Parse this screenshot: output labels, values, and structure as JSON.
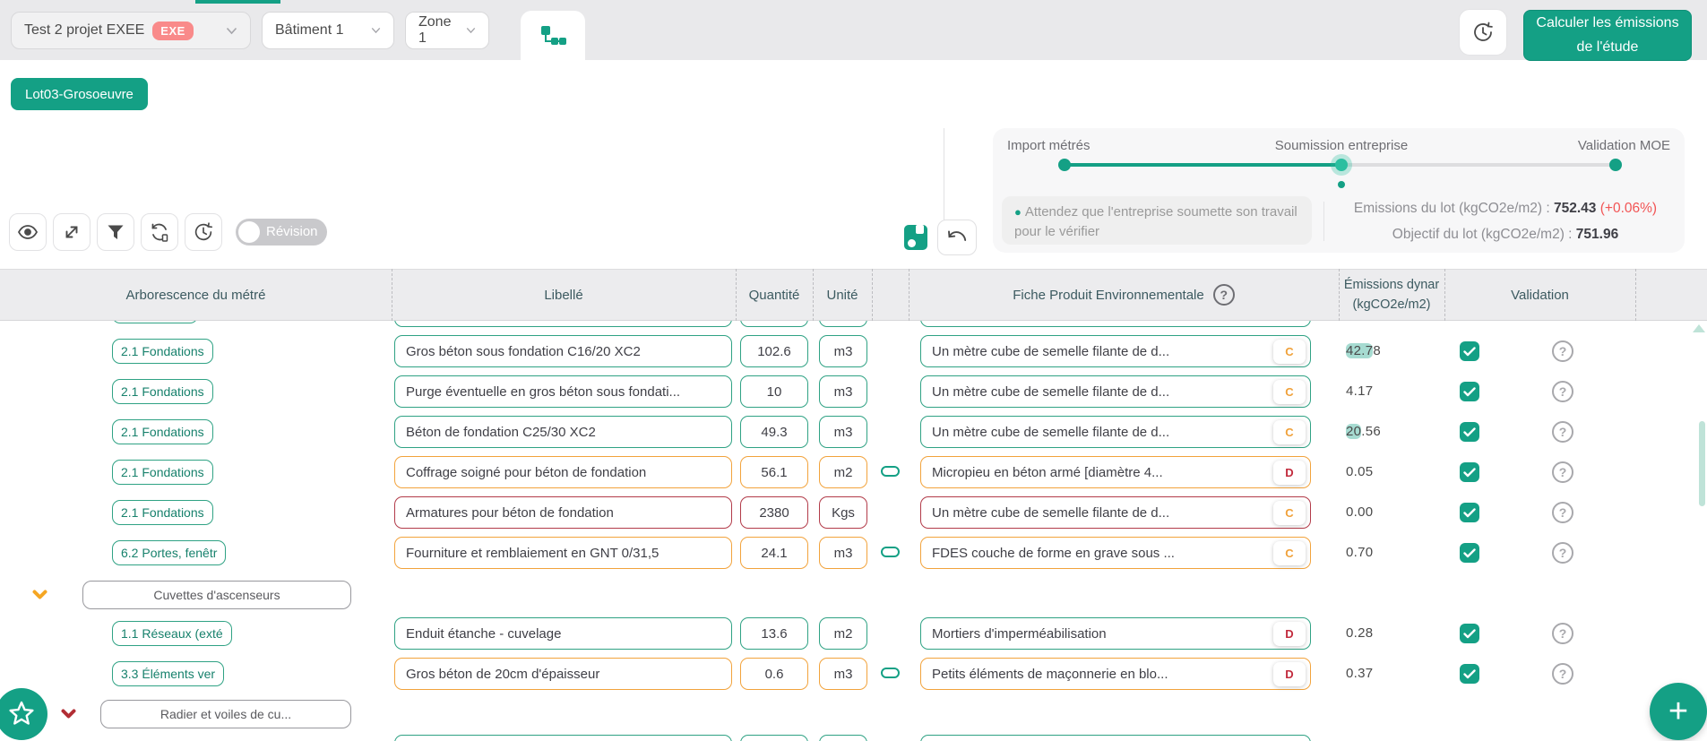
{
  "colors": {
    "accent": "#14A085",
    "row_teal": "#2FA284",
    "row_orange": "#F2A33C",
    "row_red": "#B23B49",
    "grade_c": "#F0A13A",
    "grade_d": "#C22B3D",
    "exe_badge": "#F98A8A",
    "delta_red": "#F25555"
  },
  "icons": {
    "tab": "sitemap-icon",
    "history": "history-clock-icon",
    "eye": "eye-icon",
    "expand": "expand-icon",
    "filter": "filter-icon",
    "sync": "sync-icon",
    "clock": "clock-icon",
    "save": "save-icon",
    "undo": "undo-icon",
    "help": "question-circle-icon",
    "check": "check-icon",
    "link": "link-pill-icon",
    "star": "star-icon",
    "plus": "plus-icon",
    "chevron": "chevron-down-icon"
  },
  "topbar": {
    "project": {
      "label": "Test 2 projet EXEE",
      "badge": "EXE"
    },
    "building": "Bâtiment 1",
    "zone": "Zone 1",
    "calc_button": "Calculer les émissions de l'étude"
  },
  "lot_badge": "Lot03-Grosoeuvre",
  "workflow": {
    "steps": [
      "Import métrés",
      "Soumission entreprise",
      "Validation MOE"
    ],
    "note": "Attendez que l'entreprise soumette son travail pour le vérifier",
    "emissions_label": "Emissions du lot (kgCO2e/m2) :",
    "emissions_value": "752.43",
    "emissions_delta": "(+0.06%)",
    "target_label": "Objectif du lot (kgCO2e/m2) :",
    "target_value": "751.96"
  },
  "toolbar": {
    "revision_label": "Révision"
  },
  "table": {
    "headers": {
      "tree": "Arborescence du métré",
      "label": "Libellé",
      "quantity": "Quantité",
      "unit": "Unité",
      "fdes": "Fiche Produit Environnementale",
      "help_glyph": "?",
      "emissions_line1": "Émissions dynar",
      "emissions_line2": "(kgCO2e/m2)",
      "validation": "Validation"
    },
    "rows": [
      {
        "kind": "partial-bottom",
        "tone": "teal"
      },
      {
        "kind": "item",
        "tone": "teal",
        "tree_label": "2.1 Fondations",
        "label": "Gros béton sous fondation C16/20 XC2",
        "qty": "102.6",
        "unit": "m3",
        "linked": false,
        "fdes": "Un mètre cube de semelle filante de d...",
        "grade": "C",
        "emission": "42.78",
        "em_hl": "42.7",
        "validated": true
      },
      {
        "kind": "item",
        "tone": "teal",
        "tree_label": "2.1 Fondations",
        "label": "Purge éventuelle en gros béton sous fondati...",
        "qty": "10",
        "unit": "m3",
        "linked": false,
        "fdes": "Un mètre cube de semelle filante de d...",
        "grade": "C",
        "emission": "4.17",
        "validated": true
      },
      {
        "kind": "item",
        "tone": "teal",
        "tree_label": "2.1 Fondations",
        "label": "Béton de fondation C25/30 XC2",
        "qty": "49.3",
        "unit": "m3",
        "linked": false,
        "fdes": "Un mètre cube de semelle filante de d...",
        "grade": "C",
        "emission": "20.56",
        "em_hl": "20",
        "validated": true
      },
      {
        "kind": "item",
        "tone": "orange",
        "tree_label": "2.1 Fondations",
        "label": "Coffrage soigné pour béton de fondation",
        "qty": "56.1",
        "unit": "m2",
        "linked": true,
        "fdes": "Micropieu en béton armé [diamètre 4...",
        "grade": "D",
        "emission": "0.05",
        "validated": true
      },
      {
        "kind": "item",
        "tone": "red",
        "tree_label": "2.1 Fondations",
        "label": "Armatures pour béton de fondation",
        "qty": "2380",
        "unit": "Kgs",
        "linked": false,
        "fdes": "Un mètre cube de semelle filante de d...",
        "grade": "C",
        "emission": "0.00",
        "validated": true
      },
      {
        "kind": "item",
        "tone": "orange",
        "tree_label": "6.2 Portes, fenêtr",
        "label": "Fourniture et remblaiement en GNT 0/31,5",
        "qty": "24.1",
        "unit": "m3",
        "linked": true,
        "fdes": "FDES couche de forme en grave sous ...",
        "grade": "C",
        "emission": "0.70",
        "validated": true
      },
      {
        "kind": "group",
        "tree_label": "Cuvettes d'ascenseurs",
        "chevron": "orange"
      },
      {
        "kind": "item",
        "tone": "teal",
        "tree_label": "1.1 Réseaux (exté",
        "label": "Enduit étanche - cuvelage",
        "qty": "13.6",
        "unit": "m2",
        "linked": false,
        "fdes": "Mortiers d'imperméabilisation",
        "grade": "D",
        "emission": "0.28",
        "validated": true
      },
      {
        "kind": "item",
        "tone": "orange",
        "tree_label": "3.3 Éléments ver",
        "label": "Gros béton de 20cm d'épaisseur",
        "qty": "0.6",
        "unit": "m3",
        "linked": true,
        "fdes": "Petits éléments de maçonnerie en blo...",
        "grade": "D",
        "emission": "0.37",
        "validated": true
      },
      {
        "kind": "group",
        "tree_label": "Radier et voiles de cu...",
        "chevron": "red"
      },
      {
        "kind": "partial-top",
        "tone": "teal"
      }
    ]
  }
}
